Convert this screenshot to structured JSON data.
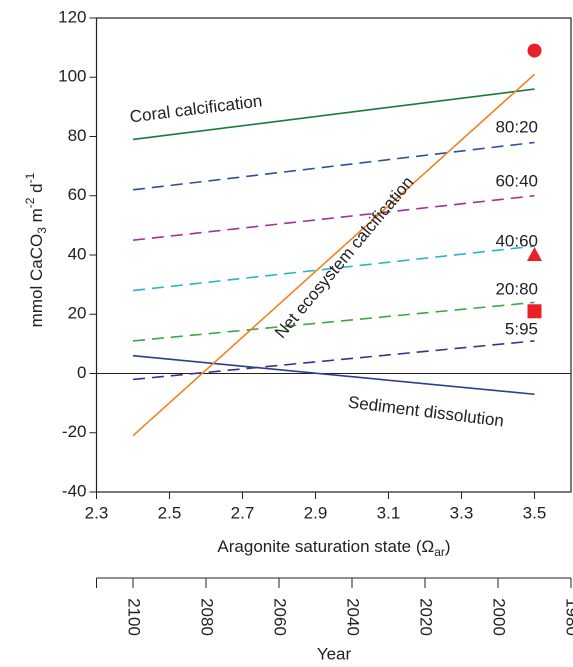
{
  "chart_data": {
    "type": "line",
    "ylabel": [
      "mmol CaCO",
      "3",
      " m",
      "-2",
      " d",
      "-1"
    ],
    "xlabel": [
      "Aragonite saturation state (Ω",
      "ar",
      ")"
    ],
    "x2label": "Year",
    "xlim": [
      2.3,
      3.6
    ],
    "xticks": [
      2.3,
      2.5,
      2.7,
      2.9,
      3.1,
      3.3,
      3.5
    ],
    "ylim": [
      -40,
      120
    ],
    "yticks": [
      -40,
      -20,
      0,
      20,
      40,
      60,
      80,
      100,
      120
    ],
    "x2lim": [
      2110,
      1980
    ],
    "x2ticks": [
      2100,
      2080,
      2060,
      2040,
      2020,
      2000,
      1980
    ],
    "series": [
      {
        "name": "Coral calcification",
        "color": "#1a7a3a",
        "dash": false,
        "x": [
          2.4,
          3.5
        ],
        "values": [
          79,
          96
        ]
      },
      {
        "name": "80:20",
        "color": "#2f4f9e",
        "dash": true,
        "x": [
          2.4,
          3.5
        ],
        "values": [
          62,
          78
        ]
      },
      {
        "name": "60:40",
        "color": "#a0329a",
        "dash": true,
        "x": [
          2.4,
          3.5
        ],
        "values": [
          45,
          60
        ]
      },
      {
        "name": "40:60",
        "color": "#2bb5c9",
        "dash": true,
        "x": [
          2.4,
          3.5
        ],
        "values": [
          28,
          43
        ]
      },
      {
        "name": "20:80",
        "color": "#3aa845",
        "dash": true,
        "x": [
          2.4,
          3.5
        ],
        "values": [
          11,
          24
        ]
      },
      {
        "name": "5:95",
        "color": "#4b2a8e",
        "dash": true,
        "x": [
          2.4,
          3.5
        ],
        "values": [
          -2,
          11
        ]
      },
      {
        "name": "Sediment dissolution",
        "color": "#2b3f8f",
        "dash": false,
        "x": [
          2.4,
          3.5
        ],
        "values": [
          6,
          -7
        ]
      },
      {
        "name": "Net ecosystem calcification",
        "color": "#ef8321",
        "dash": false,
        "x": [
          2.4,
          3.5
        ],
        "values": [
          -21,
          101
        ]
      }
    ],
    "points": [
      {
        "marker": "circle",
        "color": "#e8202a",
        "x": [
          3.5
        ],
        "values": [
          109
        ]
      },
      {
        "marker": "triangle",
        "color": "#e8202a",
        "x": [
          3.5
        ],
        "values": [
          40
        ]
      },
      {
        "marker": "square",
        "color": "#e8202a",
        "x": [
          3.5
        ],
        "values": [
          21
        ]
      }
    ]
  }
}
